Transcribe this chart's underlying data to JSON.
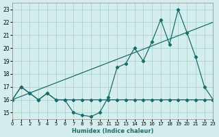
{
  "xlabel": "Humidex (Indice chaleur)",
  "ylabel": "",
  "bg_color": "#d4eeee",
  "grid_color": "#b0d4d4",
  "line_color": "#1a6b6b",
  "xlim": [
    0,
    23
  ],
  "ylim": [
    15,
    23
  ],
  "yticks": [
    15,
    16,
    17,
    18,
    19,
    20,
    21,
    22,
    23
  ],
  "xticks": [
    0,
    1,
    2,
    3,
    4,
    5,
    6,
    7,
    8,
    9,
    10,
    11,
    12,
    13,
    14,
    15,
    16,
    17,
    18,
    19,
    20,
    21,
    22,
    23
  ],
  "series1_x": [
    0,
    1,
    2,
    3,
    4,
    5,
    6,
    7,
    8,
    9,
    10,
    11,
    12,
    13,
    14,
    15,
    16,
    17,
    18,
    19,
    20,
    21,
    22,
    23
  ],
  "series1_y": [
    16,
    17,
    16.5,
    16,
    16.5,
    16,
    16,
    16,
    16,
    16,
    16,
    16,
    16,
    16,
    16,
    16,
    16,
    16,
    16,
    16,
    16,
    16,
    16,
    16
  ],
  "series2_x": [
    0,
    1,
    2,
    3,
    4,
    5,
    6,
    7,
    8,
    9,
    10,
    11,
    12,
    13,
    14,
    15,
    16,
    17,
    18,
    19,
    20,
    21,
    22,
    23
  ],
  "series2_y": [
    16,
    17,
    16.5,
    16,
    16.5,
    16,
    16,
    15,
    14.8,
    14.7,
    15,
    16.2,
    18.5,
    18.8,
    20,
    19,
    20.5,
    22.2,
    20.3,
    23,
    21.2,
    19.3,
    17,
    16
  ]
}
